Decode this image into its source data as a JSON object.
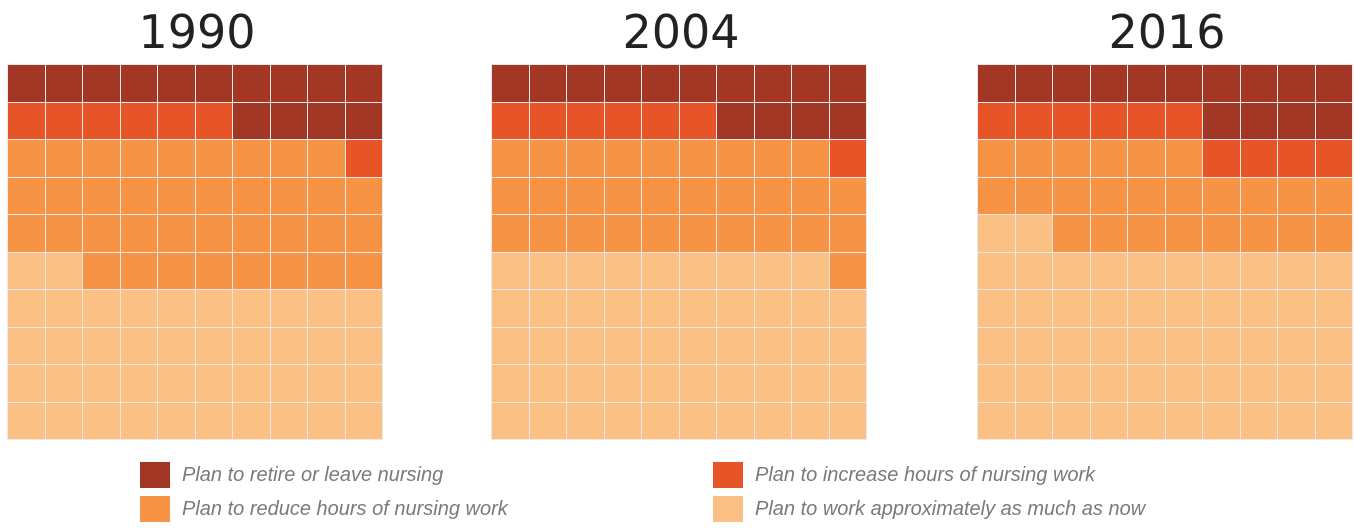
{
  "chart_data": {
    "type": "waffle",
    "categories": [
      "Plan to retire or leave nursing",
      "Plan to increase hours of nursing work",
      "Plan to reduce hours of nursing work",
      "Plan to work approximately as much as now"
    ],
    "colors": {
      "Plan to retire or leave nursing": "#a33725",
      "Plan to increase hours of nursing work": "#e65428",
      "Plan to reduce hours of nursing work": "#f69344",
      "Plan to work approximately as much as now": "#fbc083"
    },
    "panels": [
      {
        "year": "1990",
        "values": [
          14,
          7,
          37,
          42
        ]
      },
      {
        "year": "2004",
        "values": [
          14,
          7,
          30,
          49
        ]
      },
      {
        "year": "2016",
        "values": [
          14,
          10,
          24,
          52
        ]
      }
    ]
  },
  "legend": [
    {
      "label": "Plan to retire or leave nursing",
      "color": "#a33725"
    },
    {
      "label": "Plan to increase hours of nursing work",
      "color": "#e65428"
    },
    {
      "label": "Plan to reduce hours of nursing work",
      "color": "#f69344"
    },
    {
      "label": "Plan to work approximately as much as now",
      "color": "#fbc083"
    }
  ]
}
